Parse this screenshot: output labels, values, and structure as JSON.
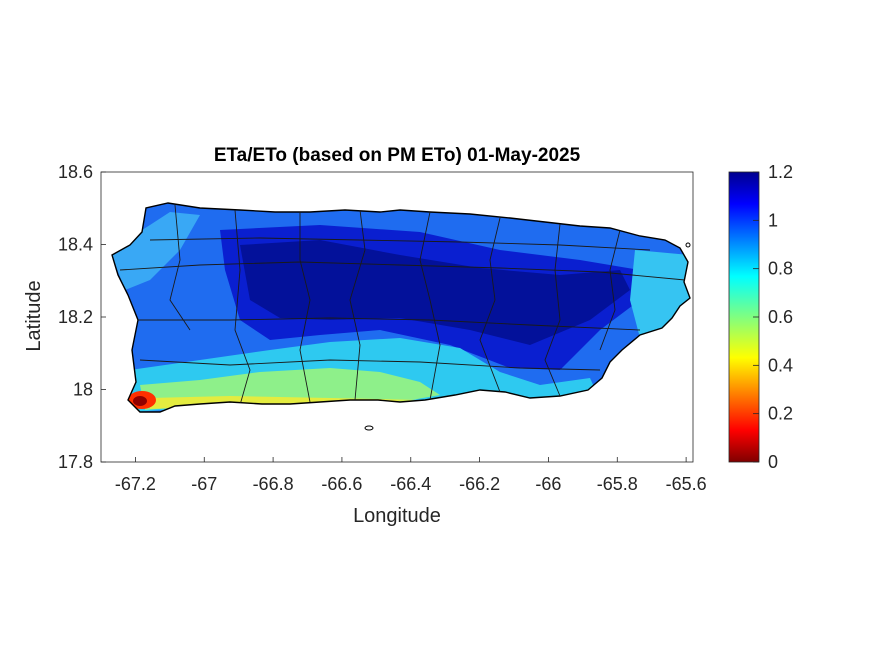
{
  "chart_data": {
    "type": "heatmap",
    "title": "ETa/ETo (based on PM ETo) 01-May-2025",
    "xlabel": "Longitude",
    "ylabel": "Latitude",
    "xlim": [
      -67.3,
      -65.58
    ],
    "ylim": [
      17.8,
      18.6
    ],
    "xticks": [
      "-67.2",
      "-67",
      "-66.8",
      "-66.6",
      "-66.4",
      "-66.2",
      "-66",
      "-65.8",
      "-65.6"
    ],
    "xtick_values": [
      -67.2,
      -67.0,
      -66.8,
      -66.6,
      -66.4,
      -66.2,
      -66.0,
      -65.8,
      -65.6
    ],
    "yticks": [
      "18.6",
      "18.4",
      "18.2",
      "18",
      "17.8"
    ],
    "ytick_values": [
      18.6,
      18.4,
      18.2,
      18.0,
      17.8
    ],
    "grid": false,
    "colormap": "jet",
    "colorbar": {
      "range": [
        0,
        1.2
      ],
      "tick_labels": [
        "1.2",
        "1",
        "0.8",
        "0.6",
        "0.4",
        "0.2",
        "0"
      ],
      "tick_values": [
        1.2,
        1.0,
        0.8,
        0.6,
        0.4,
        0.2,
        0.0
      ],
      "position": "right"
    },
    "regions": [
      {
        "name": "dark-blue interior band",
        "lon": [
          -66.9,
          -65.8
        ],
        "lat": [
          18.12,
          18.42
        ],
        "value": 1.1
      },
      {
        "name": "blue northwest",
        "lon": [
          -67.2,
          -66.9
        ],
        "lat": [
          18.15,
          18.45
        ],
        "value": 0.9
      },
      {
        "name": "cyan south coast",
        "lon": [
          -67.1,
          -65.9
        ],
        "lat": [
          17.95,
          18.1
        ],
        "value": 0.75
      },
      {
        "name": "yellow south coast strip",
        "lon": [
          -67.1,
          -66.3
        ],
        "lat": [
          17.95,
          18.0
        ],
        "value": 0.5
      },
      {
        "name": "red southwest corner",
        "lon": [
          -67.2,
          -67.15
        ],
        "lat": [
          17.95,
          17.99
        ],
        "value": 0.1
      },
      {
        "name": "cyan east end",
        "lon": [
          -65.75,
          -65.62
        ],
        "lat": [
          18.1,
          18.38
        ],
        "value": 0.75
      }
    ]
  }
}
